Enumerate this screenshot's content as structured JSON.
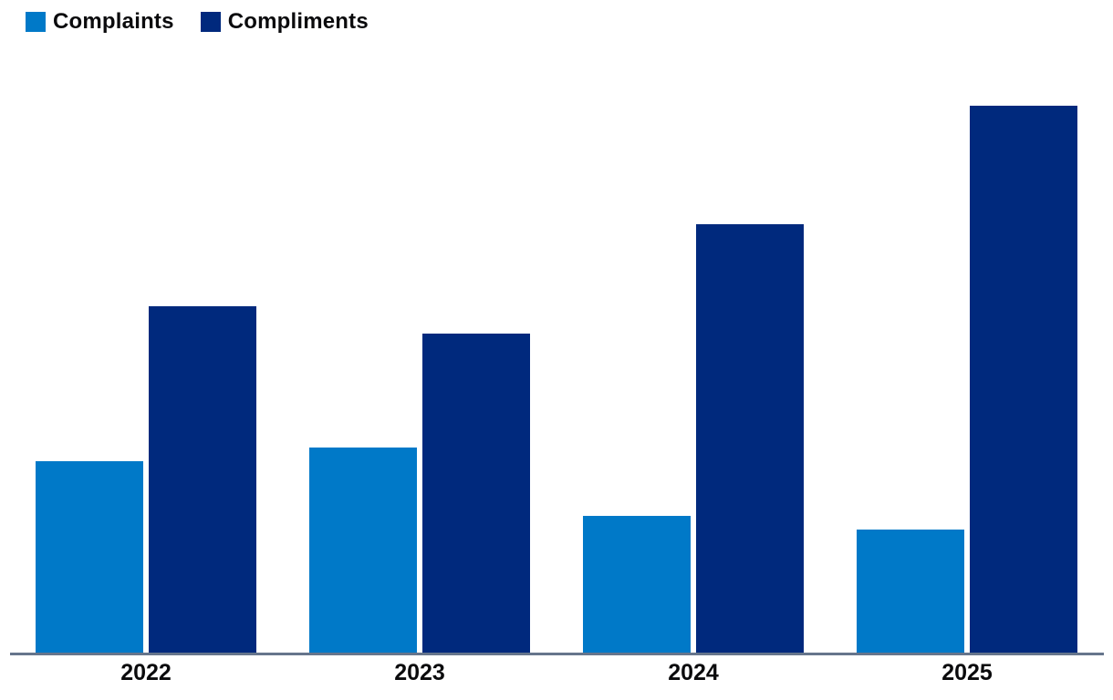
{
  "chart_data": {
    "type": "bar",
    "title": "",
    "categories": [
      "2022",
      "2023",
      "2024",
      "2025"
    ],
    "series": [
      {
        "name": "Complaints",
        "color": "#0079C8",
        "values": [
          210,
          225,
          150,
          135
        ]
      },
      {
        "name": "Compliments",
        "color": "#00297D",
        "values": [
          380,
          350,
          470,
          600
        ]
      }
    ],
    "xlabel": "",
    "ylabel": "",
    "ylim": [
      0,
      640
    ],
    "grid": false,
    "y_axis_visible": false,
    "legend_position": "top-left",
    "axis_line_color": "#66758C",
    "text_color": "#0B0B0D"
  }
}
